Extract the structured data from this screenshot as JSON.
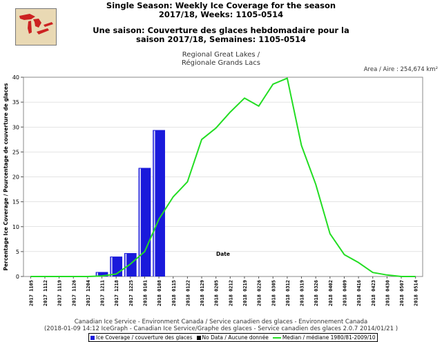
{
  "title_en": {
    "line1": "Single Season: Weekly Ice Coverage for the season",
    "line2": "2017/18, Weeks: 1105-0514"
  },
  "title_fr": {
    "line1": "Une saison: Couverture des glaces hebdomadaire pour la",
    "line2": "saison 2017/18, Semaines: 1105-0514"
  },
  "region": {
    "line1": "Regional Great Lakes /",
    "line2": "Régionale Grands Lacs"
  },
  "area_label": "Area / Aire : 254,674 km²",
  "footer": {
    "line1": "Canadian Ice Service - Environment Canada / Service canadien des glaces - Environnement Canada",
    "line2": "(2018-01-09 14:12 IceGraph - Canadian Ice Service/Graphe des glaces - Service canadien des glaces 2.0.7 2014/01/21 )"
  },
  "legend": {
    "ice": "Ice Coverage / couverture des glaces",
    "nodata": "No Data / Aucune donnée",
    "median": "Median / médiane 1980/81-2009/10"
  },
  "colors": {
    "bar": "#1a1adb",
    "bar_highlight": "#ffffff",
    "median_line": "#22dd22",
    "nodata": "#000000",
    "map_water": "#cc2222",
    "map_land": "#e9d9b4"
  },
  "chart_data": {
    "type": "bar",
    "ylabel": "Percentage Ice Coverage / Pourcentage de couverture de glaces",
    "xlabel": "Date",
    "ylim": [
      0,
      40
    ],
    "yticks": [
      0,
      5,
      10,
      15,
      20,
      25,
      30,
      35,
      40
    ],
    "grid": "horizontal",
    "categories": [
      "2017 1105",
      "2017 1112",
      "2017 1119",
      "2017 1126",
      "2017 1204",
      "2017 1211",
      "2017 1218",
      "2017 1225",
      "2018 0101",
      "2018 0108",
      "2018 0115",
      "2018 0122",
      "2018 0129",
      "2018 0205",
      "2018 0212",
      "2018 0219",
      "2018 0226",
      "2018 0305",
      "2018 0312",
      "2018 0319",
      "2018 0326",
      "2018 0402",
      "2018 0409",
      "2018 0416",
      "2018 0423",
      "2018 0430",
      "2018 0507",
      "2018 0514"
    ],
    "series": [
      {
        "name": "Ice Coverage / couverture des glaces",
        "type": "bar",
        "values": [
          0,
          0,
          0,
          0,
          0,
          0.9,
          4.0,
          4.7,
          21.8,
          29.4,
          null,
          null,
          null,
          null,
          null,
          null,
          null,
          null,
          null,
          null,
          null,
          null,
          null,
          null,
          null,
          null,
          null,
          null
        ]
      },
      {
        "name": "Median / médiane 1980/81-2009/10",
        "type": "line",
        "values": [
          0,
          0,
          0,
          0,
          0,
          0.1,
          0.5,
          2.5,
          5.0,
          11.5,
          16.0,
          19.0,
          27.5,
          29.8,
          33.0,
          35.8,
          34.2,
          38.6,
          39.8,
          26.3,
          18.5,
          8.6,
          4.4,
          2.8,
          0.8,
          0.3,
          0,
          0
        ]
      }
    ]
  }
}
